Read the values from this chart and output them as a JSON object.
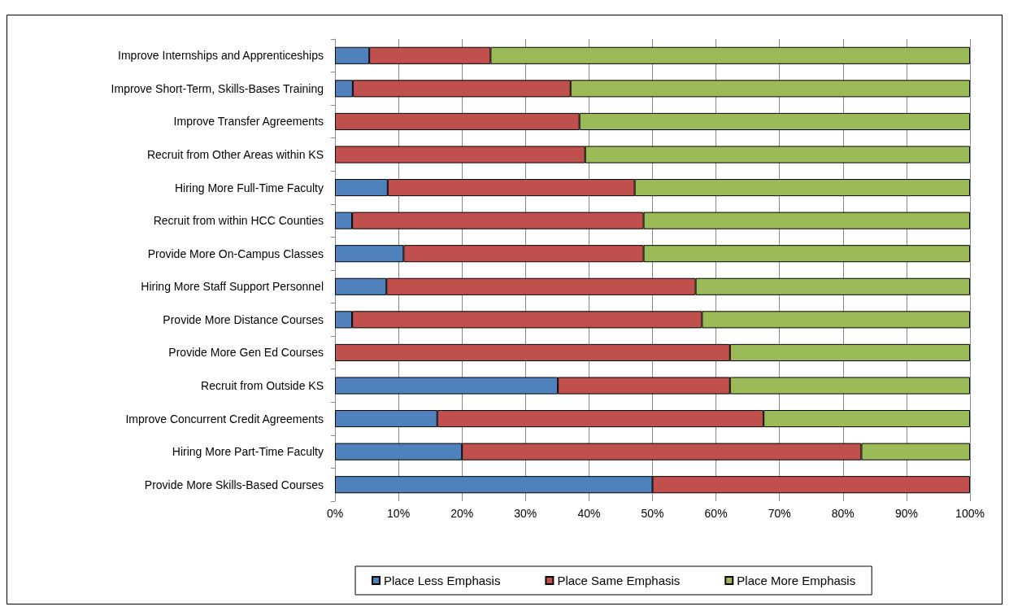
{
  "chart_data": {
    "type": "bar",
    "orientation": "horizontal",
    "stacked": true,
    "categories": [
      "Improve Internships and Apprenticeships",
      "Improve Short-Term, Skills-Bases Training",
      "Improve Transfer Agreements",
      "Recruit from Other Areas within KS",
      "Hiring More Full-Time Faculty",
      "Recruit from within HCC Counties",
      "Provide More On-Campus Classes",
      "Hiring More Staff Support Personnel",
      "Provide More Distance Courses",
      "Provide More Gen Ed Courses",
      "Recruit from Outside KS",
      "Improve Concurrent Credit Agreements",
      "Hiring More Part-Time Faculty",
      "Provide More Skills-Based Courses"
    ],
    "series": [
      {
        "name": "Place Less Emphasis",
        "color": "#4f81bd",
        "values": [
          5.4,
          2.8,
          0,
          0,
          8.3,
          2.7,
          10.8,
          8.1,
          2.7,
          0,
          35.1,
          16.1,
          20,
          50
        ]
      },
      {
        "name": "Place Same Emphasis",
        "color": "#c0504d",
        "values": [
          19.1,
          34.3,
          38.5,
          39.4,
          38.9,
          45.9,
          37.8,
          48.7,
          55.1,
          62.2,
          27.1,
          51.4,
          62.9,
          50
        ]
      },
      {
        "name": "Place More Emphasis",
        "color": "#9bbb59",
        "values": [
          75.5,
          62.9,
          61.5,
          60.6,
          52.8,
          51.4,
          51.4,
          43.2,
          42.2,
          37.8,
          37.8,
          32.5,
          17.1,
          0
        ]
      }
    ],
    "xlim": [
      0,
      100
    ],
    "xticks": [
      {
        "value": 0,
        "label": "0%"
      },
      {
        "value": 10,
        "label": "10%"
      },
      {
        "value": 20,
        "label": "20%"
      },
      {
        "value": 30,
        "label": "30%"
      },
      {
        "value": 40,
        "label": "40%"
      },
      {
        "value": 50,
        "label": "50%"
      },
      {
        "value": 60,
        "label": "60%"
      },
      {
        "value": 70,
        "label": "70%"
      },
      {
        "value": 80,
        "label": "80%"
      },
      {
        "value": 90,
        "label": "90%"
      },
      {
        "value": 100,
        "label": "100%"
      }
    ],
    "grid": "x",
    "legend": "bottom"
  }
}
